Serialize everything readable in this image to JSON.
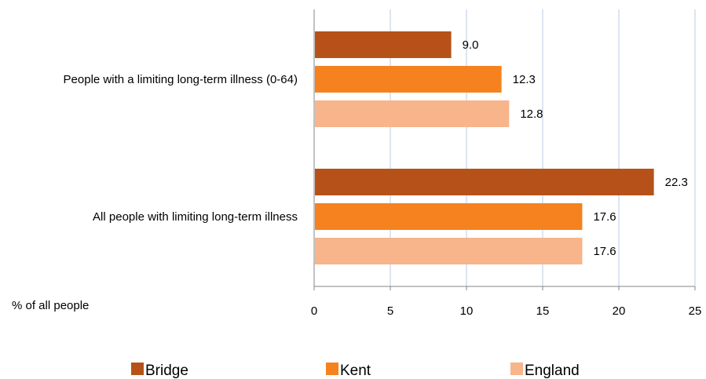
{
  "chart_data": {
    "type": "bar",
    "orientation": "horizontal",
    "categories": [
      "People with a limiting long-term illness (0-64)",
      "All people with limiting long-term illness"
    ],
    "series": [
      {
        "name": "Bridge",
        "values": [
          9.0,
          22.3
        ],
        "color": "#B65219"
      },
      {
        "name": "Kent",
        "values": [
          12.3,
          17.6
        ],
        "color": "#F5821F"
      },
      {
        "name": "England",
        "values": [
          12.8,
          17.6
        ],
        "color": "#F8B48A"
      }
    ],
    "data_labels": [
      [
        "9.0",
        "22.3"
      ],
      [
        "12.3",
        "17.6"
      ],
      [
        "12.8",
        "17.6"
      ]
    ],
    "xlabel": "% of all people",
    "xlim": [
      0,
      25
    ],
    "xticks": [
      "0",
      "5",
      "10",
      "15",
      "20",
      "25"
    ],
    "grid": "vertical",
    "grid_color": "#B9CDE5",
    "legend_position": "bottom"
  }
}
